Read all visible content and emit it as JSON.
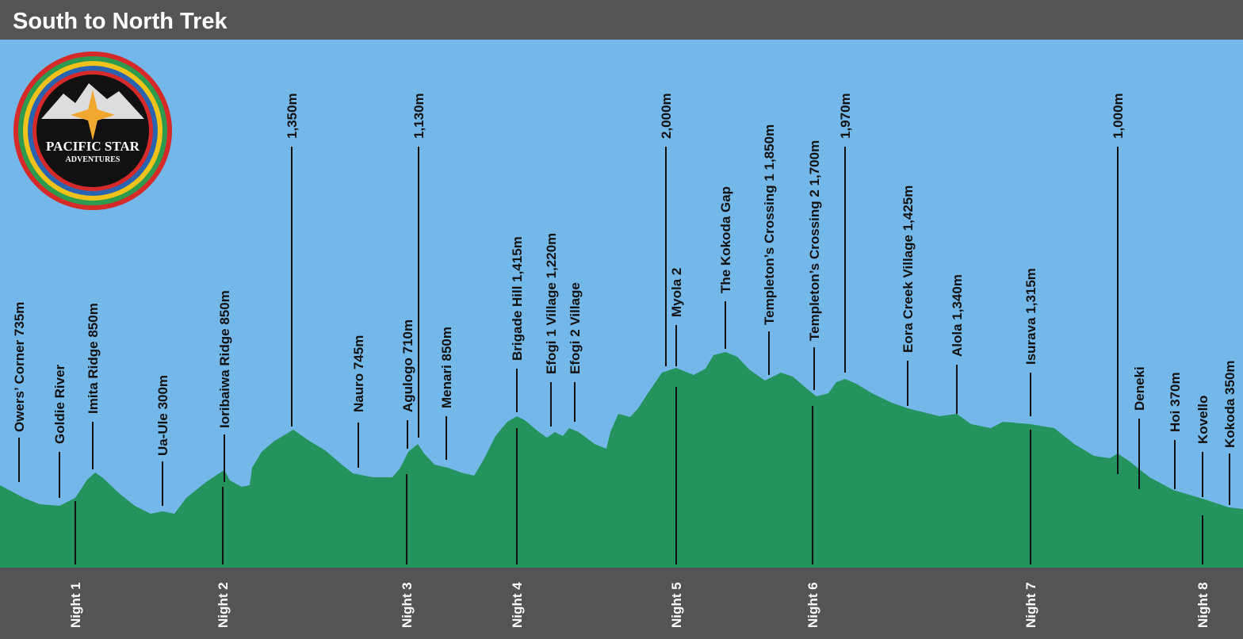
{
  "header": {
    "title": "South to North Trek"
  },
  "logo": {
    "name": "PACIFIC STAR",
    "tagline": "ADVENTURES"
  },
  "landmarks": [
    "Owers’ Corner 735m",
    "Goldie River",
    "Imita Ridge 850m",
    "Ua-Ule 300m",
    "Ioribaiwa Ridge 850m",
    "1,350m",
    "Nauro 745m",
    "Agulogo 710m",
    "1,130m",
    "Menari 850m",
    "Brigade Hill 1,415m",
    "Efogi 1 Village 1,220m",
    "Efogi 2 Village",
    "2,000m",
    "Myola 2",
    "The Kokoda Gap",
    "Templeton’s Crossing 1 1,850m",
    "Templeton’s Crossing 2 1,700m",
    "1,970m",
    "Eora Creek Village 1,425m",
    "Alola 1,340m",
    "Isurava 1,315m",
    "1,000m",
    "Deneki",
    "Hoi 370m",
    "Kovello",
    "Kokoda 350m"
  ],
  "nights": [
    "Night 1",
    "Night 2",
    "Night 3",
    "Night 4",
    "Night 5",
    "Night 6",
    "Night 7",
    "Night 8"
  ]
}
